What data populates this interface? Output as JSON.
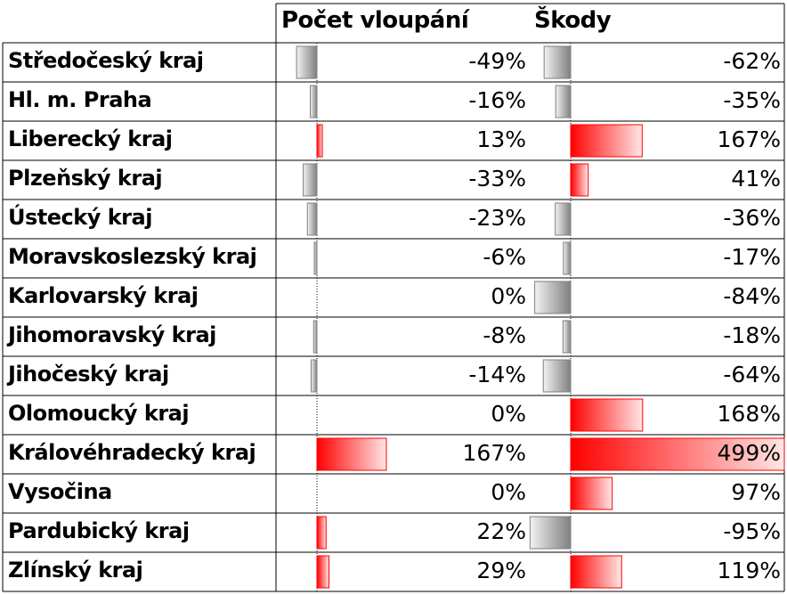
{
  "header": {
    "col1": "Počet vloupání",
    "col2": "Škody"
  },
  "colors": {
    "positive": "#ff0000",
    "negative": "#808080",
    "grid": "#000000"
  },
  "chart_data": {
    "type": "table",
    "categories": [
      "Středočeský kraj",
      "Hl. m. Praha",
      "Liberecký kraj",
      "Plzeňský kraj",
      "Ústecký kraj",
      "Moravskoslezský kraj",
      "Karlovarský kraj",
      "Jihomoravský kraj",
      "Jihočeský kraj",
      "Olomoucký kraj",
      "Královéhradecký kraj",
      "Vysočina",
      "Pardubický kraj",
      "Zlínský kraj"
    ],
    "series": [
      {
        "name": "Počet vloupání",
        "values": [
          -49,
          -16,
          13,
          -33,
          -23,
          -6,
          0,
          -8,
          -14,
          0,
          167,
          0,
          22,
          29
        ],
        "labels": [
          "-49%",
          "-16%",
          "13%",
          "-33%",
          "-23%",
          "-6%",
          "0%",
          "-8%",
          "-14%",
          "0%",
          "167%",
          "0%",
          "22%",
          "29%"
        ]
      },
      {
        "name": "Škody",
        "values": [
          -62,
          -35,
          167,
          41,
          -36,
          -17,
          -84,
          -18,
          -64,
          168,
          499,
          97,
          -95,
          119
        ],
        "labels": [
          "-62%",
          "-35%",
          "167%",
          "41%",
          "-36%",
          "-17%",
          "-84%",
          "-18%",
          "-64%",
          "168%",
          "499%",
          "97%",
          "-95%",
          "119%"
        ]
      }
    ]
  }
}
